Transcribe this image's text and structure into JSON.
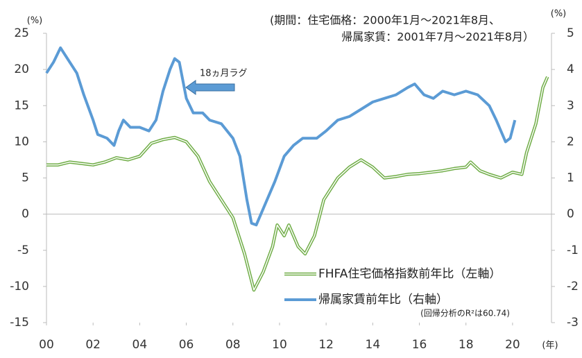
{
  "chart_data": {
    "type": "line",
    "title_lines": [
      "(期間：住宅価格：2000年1月～2021年8月、",
      "帰属家賃：2001年7月～2021年8月）"
    ],
    "y_unit": "(%)",
    "y2_unit": "(%)",
    "x_unit": "(年)",
    "annotation": "18ヵ月ラグ",
    "note": "(回帰分析のR²は60.74)",
    "xlim": [
      2000,
      2021.67
    ],
    "xticks": [
      {
        "value": 2000,
        "label": "00"
      },
      {
        "value": 2002,
        "label": "02"
      },
      {
        "value": 2004,
        "label": "04"
      },
      {
        "value": 2006,
        "label": "06"
      },
      {
        "value": 2008,
        "label": "08"
      },
      {
        "value": 2010,
        "label": "10"
      },
      {
        "value": 2012,
        "label": "12"
      },
      {
        "value": 2014,
        "label": "14"
      },
      {
        "value": 2016,
        "label": "16"
      },
      {
        "value": 2018,
        "label": "18"
      },
      {
        "value": 2020,
        "label": "20"
      }
    ],
    "ylim": [
      -15,
      25
    ],
    "yticks": [
      -15,
      -10,
      -5,
      0,
      5,
      10,
      15,
      20,
      25
    ],
    "y2lim": [
      -3,
      5
    ],
    "y2ticks": [
      -3,
      -2,
      -1,
      0,
      1,
      2,
      3,
      4,
      5
    ],
    "series": [
      {
        "name": "FHFA住宅価格指数前年比（左軸）",
        "color": "#70ad47",
        "style": "double",
        "x": [
          2000.0,
          2000.5,
          2001.0,
          2001.5,
          2002.0,
          2002.5,
          2003.0,
          2003.5,
          2004.0,
          2004.5,
          2005.0,
          2005.5,
          2006.0,
          2006.5,
          2007.0,
          2007.5,
          2008.0,
          2008.5,
          2008.9,
          2009.3,
          2009.7,
          2009.9,
          2010.2,
          2010.4,
          2010.8,
          2011.1,
          2011.5,
          2011.9,
          2012.5,
          2013.0,
          2013.5,
          2014.0,
          2014.5,
          2015.0,
          2015.5,
          2016.0,
          2016.5,
          2017.0,
          2017.5,
          2018.0,
          2018.2,
          2018.6,
          2019.0,
          2019.5,
          2020.0,
          2020.4,
          2020.6,
          2021.0,
          2021.3,
          2021.5
        ],
        "values": [
          6.8,
          6.8,
          7.2,
          7.0,
          6.8,
          7.2,
          7.8,
          7.5,
          8.0,
          9.8,
          10.3,
          10.6,
          10.0,
          8.0,
          4.5,
          2.0,
          -0.5,
          -5.5,
          -10.5,
          -8.0,
          -4.5,
          -1.5,
          -3.0,
          -1.5,
          -4.5,
          -5.5,
          -3.0,
          2.0,
          5.0,
          6.5,
          7.5,
          6.5,
          5.0,
          5.2,
          5.5,
          5.6,
          5.8,
          6.0,
          6.3,
          6.5,
          7.2,
          6.0,
          5.5,
          5.0,
          5.8,
          5.5,
          8.5,
          12.5,
          17.5,
          19.0
        ]
      },
      {
        "name": "帰属家賃前年比（右軸）",
        "color": "#5b9bd5",
        "axis": "y2",
        "x": [
          2000.0,
          2000.3,
          2000.6,
          2001.0,
          2001.3,
          2001.6,
          2002.0,
          2002.2,
          2002.6,
          2002.9,
          2003.1,
          2003.3,
          2003.6,
          2004.0,
          2004.4,
          2004.7,
          2005.0,
          2005.3,
          2005.5,
          2005.7,
          2006.0,
          2006.3,
          2006.7,
          2007.0,
          2007.5,
          2008.0,
          2008.3,
          2008.6,
          2008.8,
          2009.0,
          2009.4,
          2009.8,
          2010.2,
          2010.6,
          2011.0,
          2011.6,
          2012.0,
          2012.5,
          2013.0,
          2013.5,
          2014.0,
          2014.5,
          2015.0,
          2015.5,
          2015.8,
          2016.2,
          2016.6,
          2017.0,
          2017.5,
          2018.0,
          2018.5,
          2019.0,
          2019.3,
          2019.7,
          2019.9,
          2020.1
        ],
        "values": [
          3.9,
          4.2,
          4.6,
          4.2,
          3.9,
          3.3,
          2.6,
          2.2,
          2.1,
          1.9,
          2.3,
          2.6,
          2.4,
          2.4,
          2.3,
          2.6,
          3.4,
          4.0,
          4.3,
          4.2,
          3.2,
          2.8,
          2.8,
          2.6,
          2.5,
          2.1,
          1.6,
          0.4,
          -0.25,
          -0.3,
          0.3,
          0.9,
          1.6,
          1.9,
          2.1,
          2.1,
          2.3,
          2.6,
          2.7,
          2.9,
          3.1,
          3.2,
          3.3,
          3.5,
          3.6,
          3.3,
          3.2,
          3.4,
          3.3,
          3.4,
          3.3,
          3.0,
          2.6,
          2.0,
          2.1,
          2.6
        ]
      }
    ]
  }
}
